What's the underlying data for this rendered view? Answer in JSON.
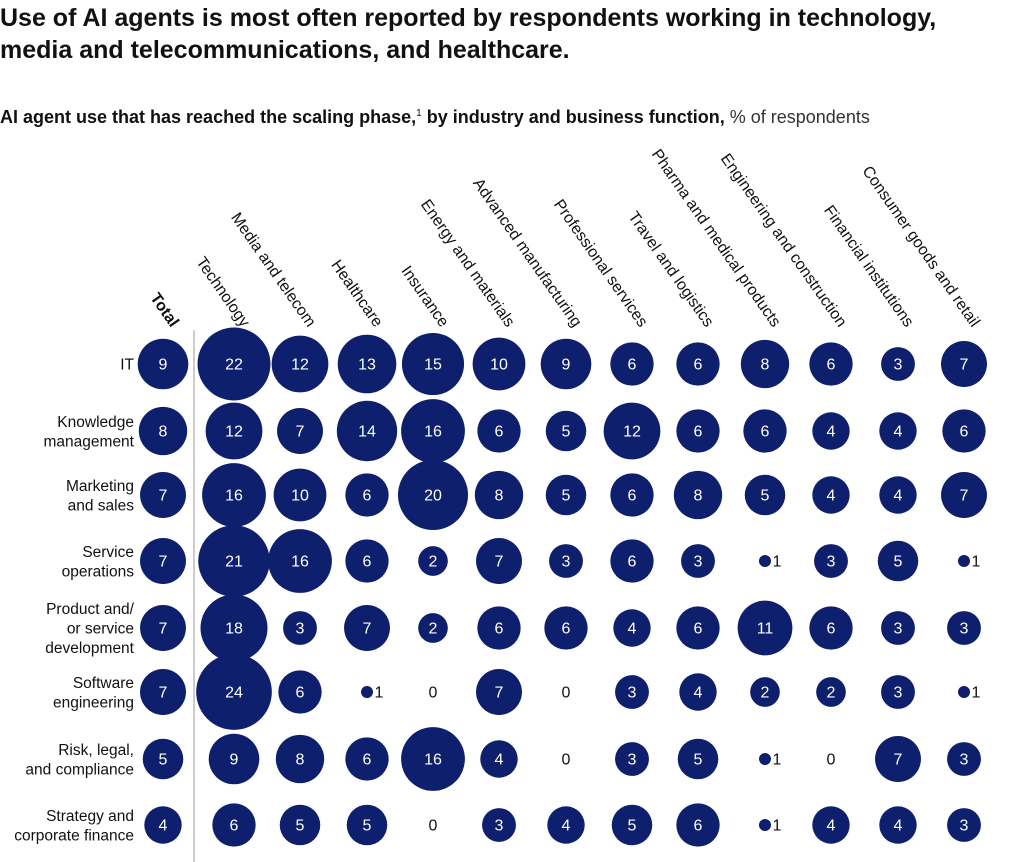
{
  "headline": "Use of AI agents is most often reported by respondents working in technology, media and telecommunications, and healthcare.",
  "subtitle": {
    "main": "AI agent use that has reached the scaling phase,",
    "footnote_marker": "1",
    "rest": " by industry and business function,",
    "unit": " % of respondents"
  },
  "colors": {
    "bubble": "#0d1f6d",
    "label_in": "#ffffff",
    "label_out": "#111111",
    "divider": "#999999"
  },
  "chart_data": {
    "type": "bubble-matrix",
    "columns": [
      "Total",
      "Technology",
      "Media and telecom",
      "Healthcare",
      "Insurance",
      "Energy and materials",
      "Advanced manufacturing",
      "Professional services",
      "Travel and logistics",
      "Pharma and medical products",
      "Engineering and construction",
      "Financial institutions",
      "Consumer goods and retail"
    ],
    "rows": [
      {
        "label": "IT",
        "values": [
          9,
          22,
          12,
          13,
          15,
          10,
          9,
          6,
          6,
          8,
          6,
          3,
          7
        ]
      },
      {
        "label": "Knowledge management",
        "values": [
          8,
          12,
          7,
          14,
          16,
          6,
          5,
          12,
          6,
          6,
          4,
          4,
          6
        ]
      },
      {
        "label": "Marketing and sales",
        "values": [
          7,
          16,
          10,
          6,
          20,
          8,
          5,
          6,
          8,
          5,
          4,
          4,
          7
        ]
      },
      {
        "label": "Service operations",
        "values": [
          7,
          21,
          16,
          6,
          2,
          7,
          3,
          6,
          3,
          1,
          3,
          5,
          1
        ]
      },
      {
        "label": "Product and/ or service development",
        "values": [
          7,
          18,
          3,
          7,
          2,
          6,
          6,
          4,
          6,
          11,
          6,
          3,
          3
        ]
      },
      {
        "label": "Software engineering",
        "values": [
          7,
          24,
          6,
          1,
          0,
          7,
          0,
          3,
          4,
          2,
          2,
          3,
          1
        ]
      },
      {
        "label": "Risk, legal, and compliance",
        "values": [
          5,
          9,
          8,
          6,
          16,
          4,
          0,
          3,
          5,
          1,
          0,
          7,
          3
        ]
      },
      {
        "label": "Strategy and corporate finance",
        "values": [
          4,
          6,
          5,
          5,
          0,
          3,
          4,
          5,
          6,
          1,
          4,
          4,
          3
        ]
      }
    ]
  }
}
